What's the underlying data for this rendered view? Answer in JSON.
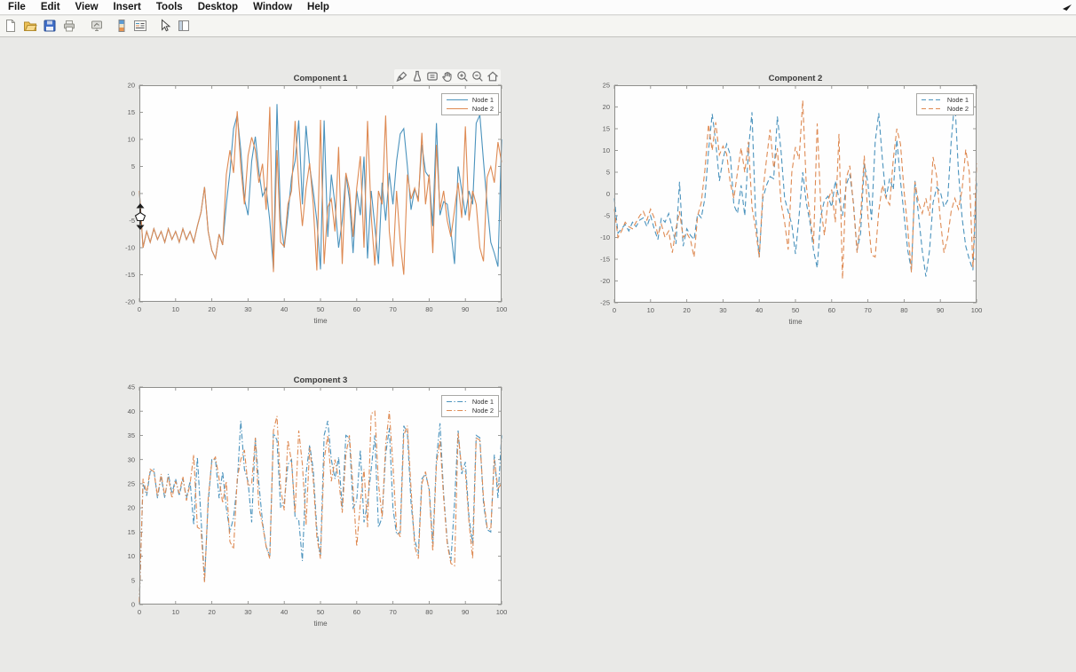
{
  "window": {
    "background": "#e9e9e7",
    "accent_blue": "#4b93bd",
    "accent_orange": "#de8a53"
  },
  "menu_bar": {
    "items": [
      "File",
      "Edit",
      "View",
      "Insert",
      "Tools",
      "Desktop",
      "Window",
      "Help"
    ]
  },
  "toolbar": {
    "icons": [
      "new-figure",
      "open-file",
      "save-figure",
      "print-figure",
      "link-plot",
      "insert-colorbar",
      "insert-legend",
      "edit-plot",
      "property-inspector"
    ]
  },
  "axes_toolbar": {
    "icons": [
      "brush",
      "datatip",
      "export",
      "pan",
      "zoom-in",
      "zoom-out",
      "restore-view"
    ]
  },
  "chart_data": [
    {
      "type": "line",
      "title": "Component 1",
      "xlabel": "time",
      "xlim": [
        0,
        100
      ],
      "x_tick_step": 10,
      "ylim": [
        -20,
        20
      ],
      "y_tick_step": 5,
      "x_start": 0,
      "x_step": 1,
      "grid": false,
      "legend_position": "top-right",
      "series": [
        {
          "name": "Node 1",
          "color": "#4b93bd",
          "dash": "solid",
          "values": [
            0.5,
            -10,
            -7,
            -9,
            -6.5,
            -8.5,
            -7,
            -9,
            -6.5,
            -8.5,
            -7,
            -9,
            -6.5,
            -8.5,
            -7,
            -9,
            -6,
            -3.5,
            1.2,
            -7,
            -10.5,
            -12,
            -7.5,
            -9.5,
            -2,
            4,
            12,
            14.5,
            8,
            -1,
            -4,
            6,
            10.5,
            4,
            -0.5,
            1,
            -5,
            -14,
            16.5,
            -5,
            -10,
            -4,
            3,
            6,
            13.5,
            -2,
            12.5,
            5,
            0.5,
            -5,
            -14,
            13.5,
            -8,
            3.5,
            -2,
            -10,
            -5,
            3.5,
            -1,
            -11,
            0.5,
            -4,
            6.8,
            -12,
            0.5,
            -6,
            -13,
            2,
            -5,
            3.8,
            -2,
            6,
            11,
            12,
            5,
            -3,
            0.8,
            -1,
            9,
            4,
            3,
            -6,
            13,
            -4,
            -1.5,
            -2,
            -7,
            -13,
            5,
            0.6,
            -4,
            0.5,
            -2,
            13,
            14.5,
            6,
            -2,
            -9,
            -11,
            -13.5,
            10
          ]
        },
        {
          "name": "Node 2",
          "color": "#de8a53",
          "dash": "solid",
          "values": [
            0.5,
            -10,
            -7,
            -9,
            -6.5,
            -8.5,
            -7,
            -9,
            -6.5,
            -8.5,
            -7,
            -9,
            -6.5,
            -8.5,
            -7,
            -9,
            -6,
            -3.5,
            1.2,
            -7,
            -10.5,
            -12,
            -7.5,
            -9.5,
            3.5,
            8,
            3.8,
            15.2,
            5,
            -2,
            7,
            10.4,
            8,
            2,
            5.5,
            -3,
            16,
            -14.5,
            8,
            -9,
            -9.8,
            -2,
            0.5,
            13.4,
            2,
            -6,
            1,
            5.6,
            -2,
            -14.2,
            13.6,
            -13,
            -2.5,
            -1,
            -7,
            8.6,
            -13,
            3.8,
            0.8,
            -8,
            1,
            6.9,
            -10,
            13.4,
            -4,
            -13.3,
            0.5,
            -2,
            14.4,
            -7,
            -13.5,
            0.5,
            -9,
            -15,
            3.5,
            -1,
            1,
            -1.5,
            11.2,
            -2,
            3.5,
            -11,
            9,
            -3,
            0.5,
            -5,
            -8,
            -3,
            2,
            -4.5,
            12.4,
            -5,
            0.5,
            -2,
            -10,
            -12.5,
            3,
            5,
            2,
            9.5,
            5.8
          ]
        }
      ]
    },
    {
      "type": "line",
      "title": "Component 2",
      "xlabel": "time",
      "xlim": [
        0,
        100
      ],
      "x_tick_step": 10,
      "ylim": [
        -25,
        25
      ],
      "y_tick_step": 5,
      "x_start": 0,
      "x_step": 1,
      "grid": false,
      "legend_position": "top-right",
      "series": [
        {
          "name": "Node 1",
          "color": "#4b93bd",
          "dash": "dashed",
          "values": [
            -1,
            -9,
            -8,
            -7,
            -8.5,
            -6.5,
            -7.5,
            -6,
            -5.5,
            -7.5,
            -5,
            -8,
            -10.5,
            -5.5,
            -6.5,
            -4.5,
            -8,
            -11.5,
            2.8,
            -12,
            -8,
            -9.5,
            -10.5,
            -4.5,
            -5.5,
            -1,
            10,
            18.4,
            12,
            3,
            8,
            11.5,
            9,
            -2.5,
            -4.5,
            2,
            -5,
            10,
            18.8,
            -5,
            -14.5,
            -1,
            2,
            4,
            3.5,
            17.8,
            10,
            -1,
            -4,
            -7,
            -13.8,
            -5,
            5,
            -2,
            -6.5,
            -13,
            -17,
            -5,
            -1.5,
            -0.5,
            -3,
            3,
            -1,
            -5,
            2,
            4.5,
            -2,
            -13,
            -9,
            7,
            2.5,
            -6,
            12,
            18.6,
            8,
            -1,
            3.5,
            1,
            12.5,
            3,
            -5,
            -13,
            -17.5,
            3,
            -5,
            -13,
            -19,
            -13,
            -2,
            1.5,
            0.5,
            -3,
            -1.5,
            12,
            21.8,
            5,
            -5.5,
            -12,
            -15,
            -17.5,
            2.5
          ]
        },
        {
          "name": "Node 2",
          "color": "#de8a53",
          "dash": "dashed",
          "values": [
            -3.5,
            -10,
            -8.5,
            -6.5,
            -7.5,
            -8,
            -6.5,
            -5,
            -4,
            -6,
            -3.5,
            -5.5,
            -9.5,
            -7,
            -10,
            -8.5,
            -13.5,
            -8,
            -4,
            -10,
            -9,
            -10.5,
            -14.5,
            -5,
            -2,
            5.5,
            16,
            10,
            16.5,
            9,
            11,
            9.2,
            2.5,
            -1,
            5,
            10.6,
            5,
            12,
            -3,
            -8,
            -14.6,
            0.5,
            8,
            14.8,
            6,
            10.5,
            -2,
            -6.5,
            -12.8,
            5,
            10.8,
            8,
            21.5,
            2,
            -5,
            -11.5,
            16.2,
            -3,
            -9.5,
            -1.5,
            1,
            -6.5,
            13.8,
            -19.5,
            3.5,
            6.5,
            -2.5,
            -13.5,
            -5,
            8.8,
            -5,
            -14,
            -14.5,
            -4,
            2,
            -1,
            -2.5,
            8,
            15,
            11.5,
            0.5,
            -8,
            -18,
            2.8,
            -2,
            -4.5,
            -1,
            -5,
            8.5,
            4,
            -6,
            -13.5,
            -10,
            -4,
            -1,
            -3.5,
            1,
            10.2,
            5,
            -17,
            7
          ]
        }
      ]
    },
    {
      "type": "line",
      "title": "Component 3",
      "xlabel": "time",
      "xlim": [
        0,
        100
      ],
      "x_tick_step": 10,
      "ylim": [
        0,
        45
      ],
      "y_tick_step": 5,
      "x_start": 0,
      "x_step": 1,
      "grid": false,
      "legend_position": "top-right",
      "series": [
        {
          "name": "Node 1",
          "color": "#4b93bd",
          "dash": "dashdot",
          "values": [
            0.5,
            25,
            22.5,
            27.5,
            28,
            22,
            26.5,
            22,
            27,
            23,
            26,
            22.5,
            26,
            22,
            25.5,
            16.5,
            30.5,
            18,
            5,
            21,
            30,
            30,
            22,
            27.5,
            20,
            15,
            18,
            25,
            38,
            28,
            25.5,
            17,
            34.5,
            25,
            17,
            12,
            10,
            35.5,
            34,
            20,
            21,
            29,
            30,
            18,
            17.5,
            9,
            27,
            33,
            28,
            15.5,
            10,
            35,
            38,
            30,
            26,
            30.5,
            20,
            35,
            34.5,
            20,
            21.5,
            32,
            17,
            21,
            28,
            35,
            16,
            18,
            31,
            36.5,
            20,
            14.5,
            15,
            37,
            35.5,
            21,
            13.5,
            10.5,
            26,
            27,
            24,
            12.5,
            30,
            37.5,
            23,
            13,
            9,
            21,
            36,
            27,
            29.5,
            18,
            12.5,
            35,
            34.5,
            21,
            15.5,
            15,
            31,
            22,
            35
          ]
        },
        {
          "name": "Node 2",
          "color": "#de8a53",
          "dash": "dashdot",
          "values": [
            0.5,
            26,
            23,
            28,
            27.5,
            22.5,
            27,
            22.5,
            26.5,
            22,
            25.5,
            23,
            26.5,
            21.5,
            25,
            31,
            16,
            15.5,
            4.5,
            22,
            29.5,
            30.5,
            26,
            21,
            25.5,
            13,
            11.5,
            26,
            30,
            32,
            24.5,
            25,
            34.5,
            20,
            16.5,
            12,
            9.5,
            36,
            39,
            24,
            19.5,
            34,
            29.5,
            19,
            36,
            29,
            16.5,
            32.5,
            26,
            14,
            9.5,
            30,
            35,
            25.5,
            30,
            26,
            19,
            31,
            35,
            24,
            12,
            21,
            28,
            16,
            39.5,
            40,
            25,
            18,
            33,
            40,
            29,
            15.5,
            14,
            35,
            37,
            24,
            12,
            9.5,
            25,
            27.5,
            23.5,
            11,
            29,
            34,
            22,
            12.5,
            8.5,
            8,
            35.5,
            28,
            27.5,
            17,
            9.5,
            34.5,
            34,
            22,
            16,
            15.5,
            30,
            24,
            25
          ]
        }
      ]
    }
  ]
}
